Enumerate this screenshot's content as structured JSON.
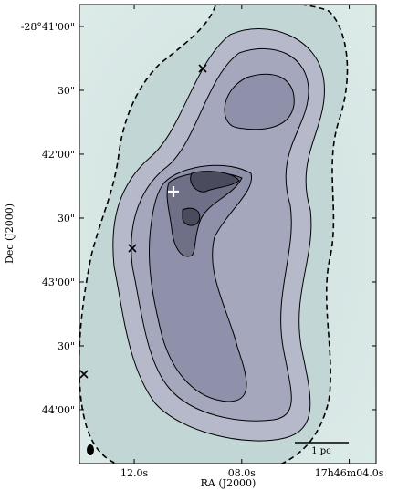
{
  "chart_data": {
    "type": "image",
    "xlabel": "RA (J2000)",
    "ylabel": "Dec (J2000)",
    "scale_bar_label": "1 pc",
    "xlim": [
      266.5585,
      266.5125
    ],
    "ylim": [
      -28.74036,
      -28.68048
    ],
    "xticks": [
      {
        "value": 266.55,
        "label": "12.0s"
      },
      {
        "value": 266.533333,
        "label": "08.0s"
      },
      {
        "value": 266.516667,
        "label": "17h46m04.0s"
      }
    ],
    "yticks": [
      {
        "value": -28.683333,
        "label": "-28°41'00\""
      },
      {
        "value": -28.691667,
        "label": "30\""
      },
      {
        "value": -28.7,
        "label": "42'00\""
      },
      {
        "value": -28.708333,
        "label": "30\""
      },
      {
        "value": -28.716667,
        "label": "43'00\""
      },
      {
        "value": -28.725,
        "label": "30\""
      },
      {
        "value": -28.733333,
        "label": "44'00\""
      }
    ]
  }
}
